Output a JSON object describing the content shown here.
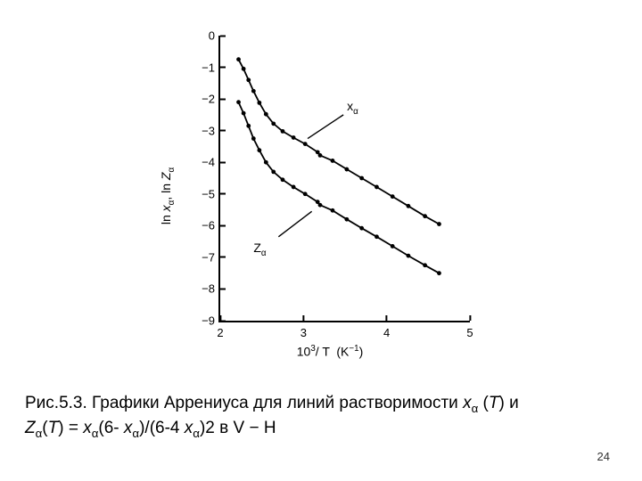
{
  "chart": {
    "type": "line",
    "xlim": [
      2,
      5
    ],
    "ylim": [
      -9,
      0
    ],
    "xtick_step": 1,
    "ytick_step": 1,
    "ylabel_html": "ln <tspan font-style='italic'>x</tspan><tspan baseline-shift='-4' font-size='10'>α</tspan>, ln <tspan font-style='italic'>Z</tspan><tspan baseline-shift='-4' font-size='10'>α</tspan>",
    "ylabel_text": "ln xα, ln Zα",
    "xlabel_html": "10<sup style='font-size:0.7em'>3</sup> / T &nbsp;(K<sup style='font-size:0.7em'>−1</sup>)",
    "xlabel_text": "10^3 / T (K^-1)",
    "background_color": "#ffffff",
    "axis_color": "#000000",
    "curve_color": "#000000",
    "curve_width": 1.8,
    "marker_radius": 2.4,
    "series": {
      "x_alpha": {
        "label": "xα",
        "label_pos": {
          "x": 3.48,
          "y": -2.5
        },
        "arrow_to": {
          "x": 3.05,
          "y": -3.25
        },
        "data": [
          {
            "x": 2.22,
            "y": -0.75
          },
          {
            "x": 2.28,
            "y": -1.05
          },
          {
            "x": 2.34,
            "y": -1.4
          },
          {
            "x": 2.4,
            "y": -1.75
          },
          {
            "x": 2.47,
            "y": -2.12
          },
          {
            "x": 2.55,
            "y": -2.48
          },
          {
            "x": 2.64,
            "y": -2.78
          },
          {
            "x": 2.75,
            "y": -3.02
          },
          {
            "x": 2.88,
            "y": -3.22
          },
          {
            "x": 3.02,
            "y": -3.42
          },
          {
            "x": 3.17,
            "y": -3.68
          },
          {
            "x": 3.2,
            "y": -3.78
          },
          {
            "x": 3.35,
            "y": -3.95
          },
          {
            "x": 3.52,
            "y": -4.22
          },
          {
            "x": 3.7,
            "y": -4.5
          },
          {
            "x": 3.88,
            "y": -4.78
          },
          {
            "x": 4.07,
            "y": -5.08
          },
          {
            "x": 4.26,
            "y": -5.38
          },
          {
            "x": 4.46,
            "y": -5.7
          },
          {
            "x": 4.63,
            "y": -5.95
          }
        ]
      },
      "z_alpha": {
        "label": "Zα",
        "label_pos": {
          "x": 2.7,
          "y": -6.35
        },
        "arrow_to": {
          "x": 3.1,
          "y": -5.55
        },
        "data": [
          {
            "x": 2.22,
            "y": -2.1
          },
          {
            "x": 2.28,
            "y": -2.45
          },
          {
            "x": 2.34,
            "y": -2.85
          },
          {
            "x": 2.4,
            "y": -3.25
          },
          {
            "x": 2.47,
            "y": -3.62
          },
          {
            "x": 2.55,
            "y": -4.0
          },
          {
            "x": 2.64,
            "y": -4.3
          },
          {
            "x": 2.75,
            "y": -4.55
          },
          {
            "x": 2.88,
            "y": -4.78
          },
          {
            "x": 3.02,
            "y": -5.0
          },
          {
            "x": 3.17,
            "y": -5.25
          },
          {
            "x": 3.2,
            "y": -5.35
          },
          {
            "x": 3.35,
            "y": -5.52
          },
          {
            "x": 3.52,
            "y": -5.8
          },
          {
            "x": 3.7,
            "y": -6.08
          },
          {
            "x": 3.88,
            "y": -6.35
          },
          {
            "x": 4.07,
            "y": -6.65
          },
          {
            "x": 4.26,
            "y": -6.95
          },
          {
            "x": 4.46,
            "y": -7.25
          },
          {
            "x": 4.63,
            "y": -7.5
          }
        ]
      }
    }
  },
  "caption": {
    "prefix": "Рис.5.3. Графики Аррениуса для линий растворимости ",
    "part2": " и ",
    "part3": " = ",
    "part4": "(6- ",
    "part5": ")/(6-4 ",
    "part6": ")2 в V − H",
    "sym_x": "x",
    "sym_Z": "Z",
    "sym_T": "T",
    "sym_alpha": "α",
    "paren_T": " ("
  },
  "page_number": "24"
}
